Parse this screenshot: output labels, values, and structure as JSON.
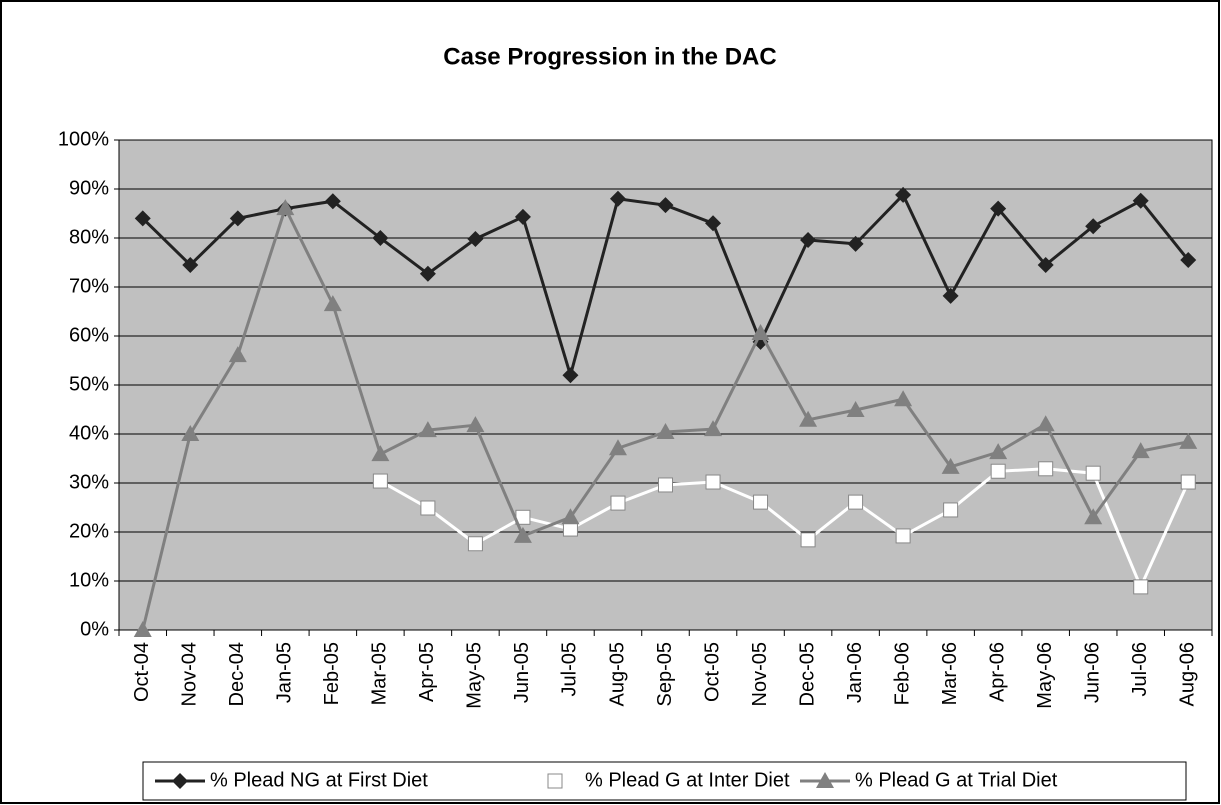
{
  "chart_data": {
    "type": "line",
    "title": "Case Progression in the DAC",
    "categories": [
      "Oct-04",
      "Nov-04",
      "Dec-04",
      "Jan-05",
      "Feb-05",
      "Mar-05",
      "Apr-05",
      "May-05",
      "Jun-05",
      "Jul-05",
      "Aug-05",
      "Sep-05",
      "Oct-05",
      "Nov-05",
      "Dec-05",
      "Jan-06",
      "Feb-06",
      "Mar-06",
      "Apr-06",
      "May-06",
      "Jun-06",
      "Jul-06",
      "Aug-06"
    ],
    "series": [
      {
        "name": "% Plead NG at First Diet",
        "color": "#222222",
        "marker": "diamond",
        "values": [
          84,
          74.5,
          84,
          86,
          87.5,
          80,
          72.7,
          79.8,
          84.3,
          52,
          88,
          86.7,
          83,
          58.8,
          79.6,
          78.8,
          88.8,
          68.2,
          86,
          74.5,
          82.4,
          87.6,
          75.5
        ]
      },
      {
        "name": "% Plead G at Inter Diet",
        "color": "#ffffff",
        "marker": "square",
        "values": [
          null,
          null,
          null,
          null,
          null,
          30.4,
          24.9,
          17.6,
          23,
          20.6,
          25.9,
          29.6,
          30.2,
          26.1,
          18.4,
          26.1,
          19.2,
          24.5,
          32.4,
          32.9,
          32,
          8.8,
          30.2
        ]
      },
      {
        "name": "% Plead G at Trial Diet",
        "color": "#808080",
        "marker": "triangle",
        "values": [
          0,
          40,
          56.1,
          86.1,
          66.5,
          35.9,
          40.8,
          41.8,
          19.2,
          23,
          37.1,
          40.4,
          41,
          60.6,
          42.9,
          44.9,
          47.1,
          33.3,
          36.3,
          42,
          23,
          36.5,
          38.4
        ]
      }
    ],
    "ylim": [
      0,
      100
    ],
    "yticks": [
      {
        "value": 0,
        "label": "0%"
      },
      {
        "value": 10,
        "label": "10%"
      },
      {
        "value": 20,
        "label": "20%"
      },
      {
        "value": 30,
        "label": "30%"
      },
      {
        "value": 40,
        "label": "40%"
      },
      {
        "value": 50,
        "label": "50%"
      },
      {
        "value": 60,
        "label": "60%"
      },
      {
        "value": 70,
        "label": "70%"
      },
      {
        "value": 80,
        "label": "80%"
      },
      {
        "value": 90,
        "label": "90%"
      },
      {
        "value": 100,
        "label": "100%"
      }
    ],
    "grid": true,
    "legend": "bottom",
    "plot_background": "#c0c0c0"
  }
}
